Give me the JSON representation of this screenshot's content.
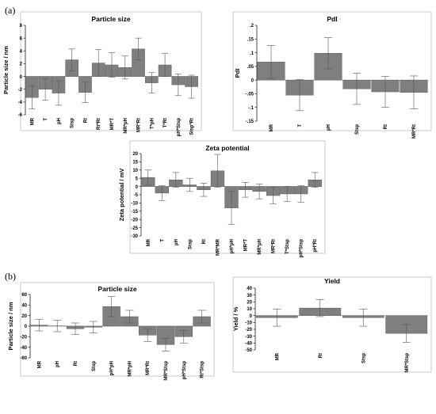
{
  "panels": {
    "a": "(a)",
    "b": "(b)"
  },
  "colors": {
    "bar": "#7f7f7f",
    "bar_edge": "#5e5e5e",
    "frame": "#bfbfbf",
    "text": "#000000"
  },
  "chart_data": [
    {
      "id": "a-particle-size",
      "type": "bar",
      "title": "Particle size",
      "ylabel": "Particle size / nm",
      "ylim": [
        -6,
        8
      ],
      "yticks": [
        -6,
        -4,
        -2,
        0,
        2,
        4,
        6,
        8
      ],
      "categories": [
        "MR",
        "T",
        "pH",
        "Stsp",
        "Rt",
        "Rt*Rt",
        "MR*T",
        "MR*pH",
        "MR*Rt",
        "T*pH",
        "T*Rt",
        "pH*Stsp",
        "Stsp*Rt"
      ],
      "values": [
        -3.3,
        -2.0,
        -2.6,
        2.6,
        -2.5,
        2.1,
        1.8,
        1.4,
        4.3,
        -1.0,
        1.8,
        -1.3,
        -1.6
      ],
      "errors": [
        1.8,
        1.7,
        1.9,
        1.7,
        1.6,
        2.1,
        1.9,
        1.8,
        1.7,
        1.6,
        1.8,
        1.7,
        1.8
      ]
    },
    {
      "id": "a-pdi",
      "type": "bar",
      "title": "PdI",
      "ylabel": "PdI",
      "ylim": [
        -0.15,
        0.2
      ],
      "yticks": [
        -0.15,
        -0.1,
        -0.05,
        0,
        0.05,
        0.1,
        0.15,
        0.2
      ],
      "categories": [
        "MR",
        "T",
        "pH",
        "Stsp",
        "Rt",
        "MR*Rt"
      ],
      "values": [
        0.066,
        -0.055,
        0.098,
        -0.032,
        -0.043,
        -0.045
      ],
      "errors": [
        0.06,
        0.057,
        0.057,
        0.057,
        0.057,
        0.06
      ]
    },
    {
      "id": "a-zeta-potential",
      "type": "bar",
      "title": "Zeta potential",
      "ylabel": "Zeta potential / mV",
      "ylim": [
        -30,
        20
      ],
      "yticks": [
        -30,
        -25,
        -20,
        -15,
        -10,
        -5,
        0,
        5,
        10,
        15,
        20
      ],
      "categories": [
        "MR",
        "T",
        "pH",
        "Stsp",
        "Rt",
        "MR*MR",
        "pH*pH",
        "MR*T",
        "MR*pH",
        "MR*Rt",
        "T*Stsp",
        "pH*Stsp",
        "pH*Rt"
      ],
      "values": [
        5.5,
        -4.0,
        4.0,
        1.0,
        -2.0,
        9.5,
        -13.0,
        -2.0,
        -3.0,
        -5.5,
        -4.5,
        -4.5,
        4.0
      ],
      "errors": [
        4.5,
        4.5,
        4.5,
        4.0,
        4.0,
        10.0,
        10.0,
        4.5,
        4.5,
        5.0,
        4.5,
        5.0,
        4.5
      ]
    },
    {
      "id": "b-particle-size",
      "type": "bar",
      "title": "Particle size",
      "ylabel": "Particle size / nm",
      "ylim": [
        -60,
        60
      ],
      "yticks": [
        -60,
        -40,
        -20,
        0,
        20,
        40,
        60
      ],
      "categories": [
        "MR",
        "pH",
        "Rt",
        "Stsp",
        "pH*pH",
        "MR*pH",
        "MR*Rt",
        "MR*Stsp",
        "pH*Stsp",
        "Rt*Stsp"
      ],
      "values": [
        2.0,
        0.5,
        -5.0,
        -2.0,
        37.0,
        18.0,
        -17.0,
        -35.0,
        -20.0,
        18.0
      ],
      "errors": [
        11,
        11,
        11,
        11,
        19,
        12,
        12,
        12,
        12,
        12
      ]
    },
    {
      "id": "b-yield",
      "type": "bar",
      "title": "Yield",
      "ylabel": "Yield / %",
      "ylim": [
        -50,
        40
      ],
      "yticks": [
        -50,
        -40,
        -30,
        -20,
        -10,
        0,
        10,
        20,
        30,
        40
      ],
      "categories": [
        "MR",
        "Rt",
        "Stsp",
        "MR*Stsp"
      ],
      "values": [
        -3.0,
        11.0,
        -3.0,
        -26.0
      ],
      "errors": [
        12.5,
        12.5,
        12.5,
        13.0
      ]
    }
  ]
}
